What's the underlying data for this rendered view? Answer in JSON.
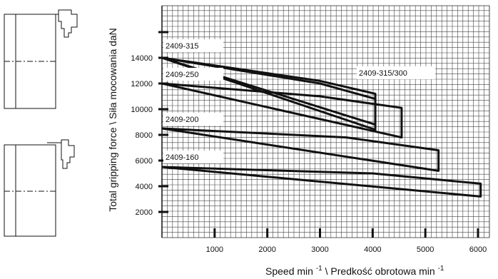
{
  "chart_data": {
    "type": "line",
    "title": "",
    "xlabel": "Speed min -1 \\ Predkość obrotowa min -1",
    "xlabel_parts": {
      "text1": "Speed min",
      "sup1": "-1",
      "text2": "\\  Predkość obrotowa min",
      "sup2": "-1"
    },
    "ylabel": "Total gripping force \\ Siła mocowania daN",
    "xlim": [
      0,
      6150
    ],
    "ylim": [
      0,
      17000
    ],
    "grid": true,
    "x_ticks": [
      1000,
      2000,
      3000,
      4000,
      5000,
      6000
    ],
    "y_ticks": [
      2000,
      4000,
      6000,
      8000,
      10000,
      12000,
      14000,
      16000
    ],
    "x_tick_labels": [
      "1000",
      "2000",
      "3000",
      "4000",
      "5000",
      "6000"
    ],
    "y_tick_labels": [
      "2000",
      "4000",
      "6000",
      "8000",
      "10000",
      "12000",
      "14000",
      ""
    ],
    "series": [
      {
        "name": "2409-315",
        "x": [
          0,
          3000,
          4050,
          4050,
          0
        ],
        "y": [
          14000,
          12200,
          11200,
          8400,
          14000
        ]
      },
      {
        "name": "2409-315/300",
        "x": [
          0,
          3000,
          4050,
          4050,
          0
        ],
        "y": [
          14000,
          12000,
          10800,
          8800,
          14000
        ]
      },
      {
        "name": "2409-250",
        "x": [
          0,
          3000,
          4550,
          4550,
          0
        ],
        "y": [
          12000,
          11000,
          10100,
          7800,
          12000
        ]
      },
      {
        "name": "2409-200",
        "x": [
          0,
          3500,
          5250,
          5250,
          0
        ],
        "y": [
          8500,
          7800,
          6800,
          5200,
          8500
        ]
      },
      {
        "name": "2409-160",
        "x": [
          0,
          4000,
          6050,
          6050,
          0
        ],
        "y": [
          5500,
          5000,
          4200,
          3200,
          5500
        ]
      }
    ]
  }
}
